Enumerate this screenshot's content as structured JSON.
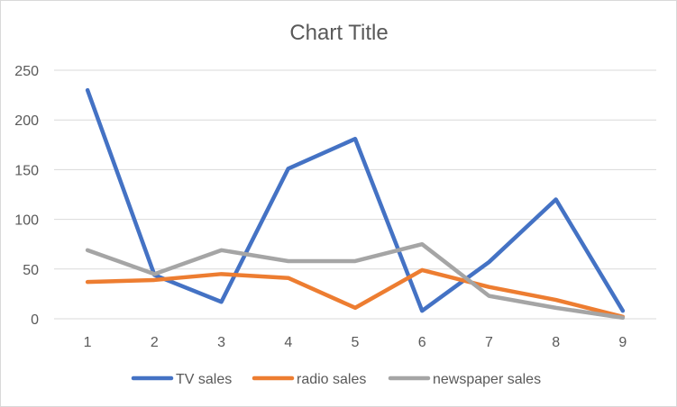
{
  "chart_data": {
    "type": "line",
    "title": "Chart Title",
    "xlabel": "",
    "ylabel": "",
    "categories": [
      "1",
      "2",
      "3",
      "4",
      "5",
      "6",
      "7",
      "8",
      "9"
    ],
    "ylim": [
      0,
      250
    ],
    "yticks": [
      "0",
      "50",
      "100",
      "150",
      "200",
      "250"
    ],
    "grid": true,
    "legend_position": "bottom",
    "series": [
      {
        "name": "TV sales",
        "color": "#4472C4",
        "values": [
          230,
          44,
          17,
          151,
          181,
          8,
          57,
          120,
          8
        ]
      },
      {
        "name": "radio sales",
        "color": "#ED7D31",
        "values": [
          37,
          39,
          45,
          41,
          11,
          49,
          32,
          19,
          2
        ]
      },
      {
        "name": "newspaper sales",
        "color": "#A5A5A5",
        "values": [
          69,
          45,
          69,
          58,
          58,
          75,
          23,
          11,
          1
        ]
      }
    ]
  }
}
